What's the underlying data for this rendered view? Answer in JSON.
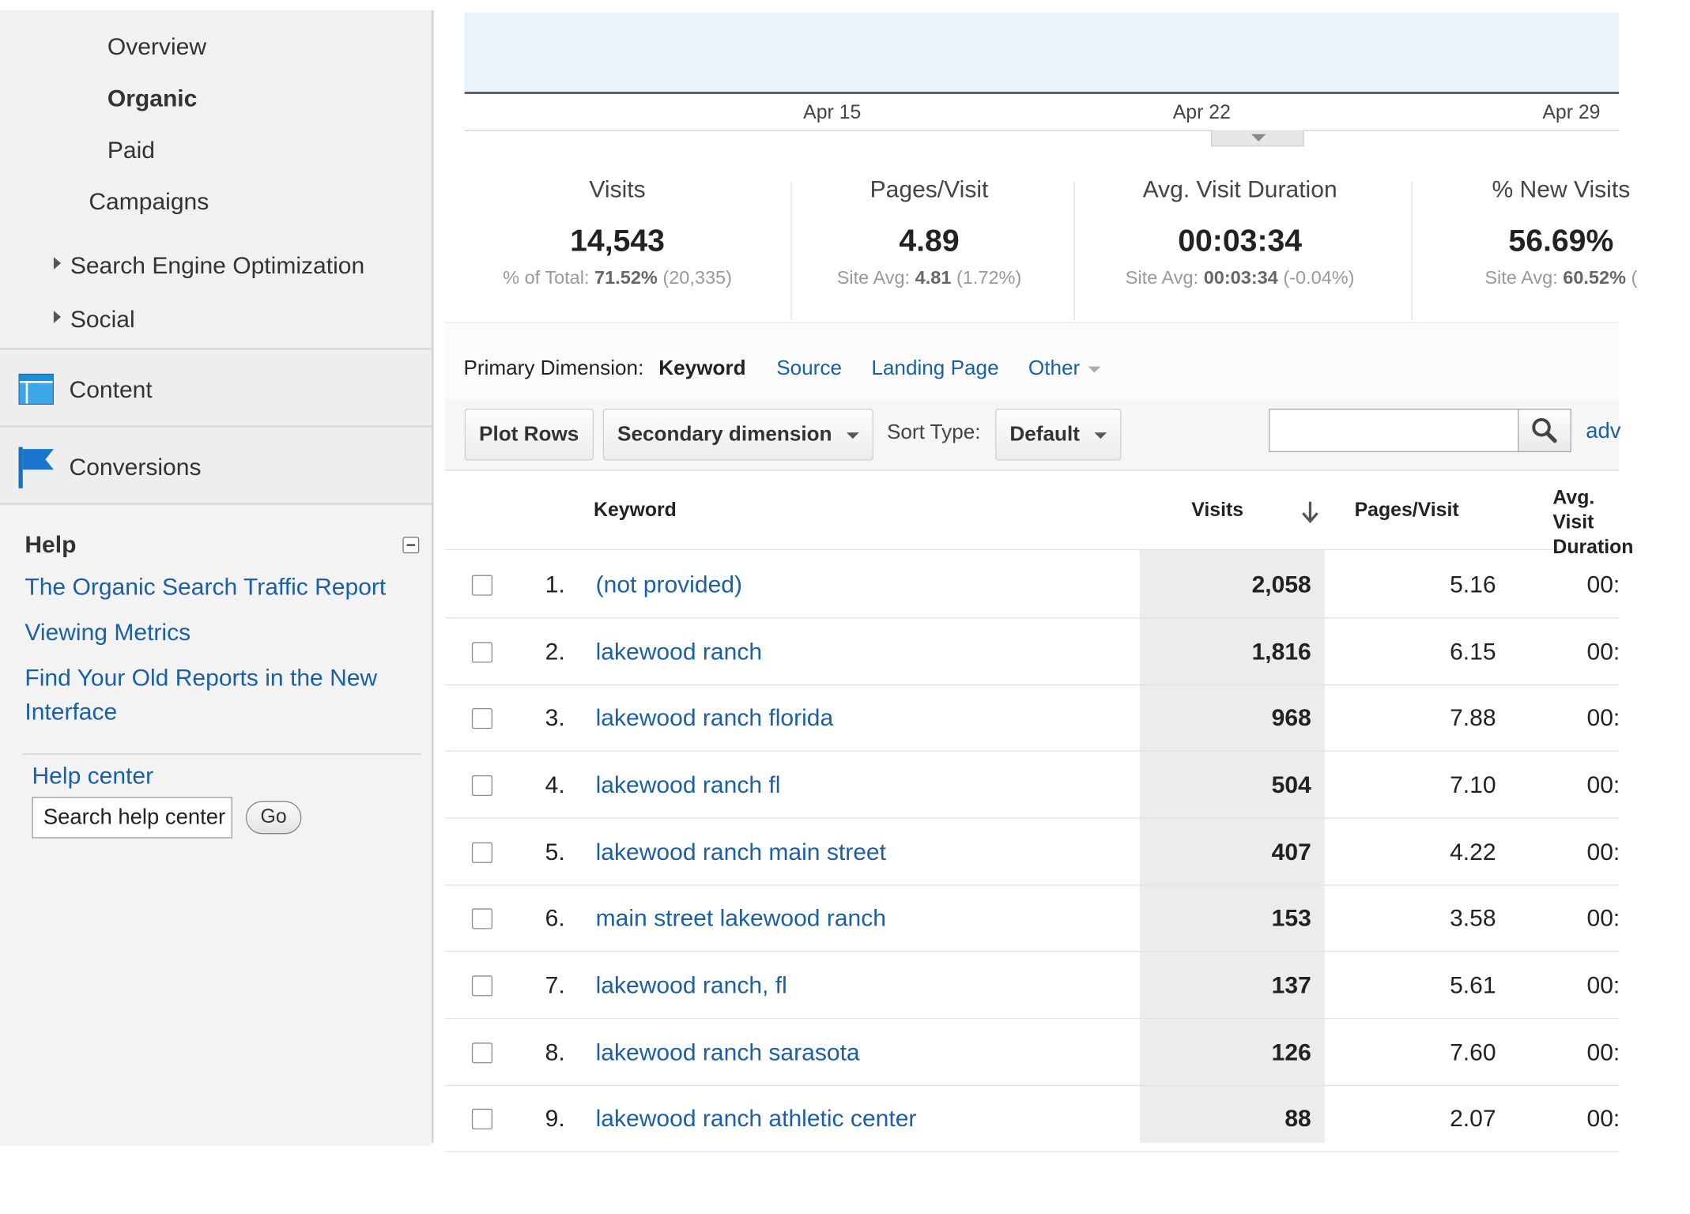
{
  "sidebar": {
    "items": [
      {
        "label": "Overview"
      },
      {
        "label": "Organic"
      },
      {
        "label": "Paid"
      },
      {
        "label": "Campaigns"
      },
      {
        "label": "Search Engine Optimization"
      },
      {
        "label": "Social"
      }
    ],
    "sections": [
      {
        "label": "Content",
        "icon": "content-icon"
      },
      {
        "label": "Conversions",
        "icon": "flag-icon"
      }
    ],
    "help": {
      "title": "Help",
      "links": [
        "The Organic Search Traffic Report",
        "Viewing Metrics",
        "Find Your Old Reports in the New Interface"
      ],
      "help_center": "Help center",
      "search_value": "Search help center",
      "go_label": "Go"
    }
  },
  "chart": {
    "dates": [
      "Apr 15",
      "Apr 22",
      "Apr 29"
    ],
    "band_color": "#e8f3fb"
  },
  "metrics": [
    {
      "label": "Visits",
      "value": "14,543",
      "sub_prefix": "% of Total:",
      "sub_bold": "71.52%",
      "sub_suffix": "(20,335)"
    },
    {
      "label": "Pages/Visit",
      "value": "4.89",
      "sub_prefix": "Site Avg:",
      "sub_bold": "4.81",
      "sub_suffix": "(1.72%)"
    },
    {
      "label": "Avg. Visit Duration",
      "value": "00:03:34",
      "sub_prefix": "Site Avg:",
      "sub_bold": "00:03:34",
      "sub_suffix": "(-0.04%)"
    },
    {
      "label": "% New Visits",
      "value": "56.69%",
      "sub_prefix": "Site Avg:",
      "sub_bold": "60.52%",
      "sub_suffix": "("
    }
  ],
  "dimension": {
    "label": "Primary Dimension:",
    "active": "Keyword",
    "options": [
      "Source",
      "Landing Page",
      "Other"
    ]
  },
  "toolbar": {
    "plot_rows": "Plot Rows",
    "secondary_dimension": "Secondary dimension",
    "sort_type_label": "Sort Type:",
    "sort_type_value": "Default",
    "advanced_link": "adv"
  },
  "table": {
    "columns": [
      "Keyword",
      "Visits",
      "Pages/Visit",
      "Avg. Visit Duration"
    ],
    "rows": [
      {
        "num": "1.",
        "keyword": "(not provided)",
        "visits": "2,058",
        "ppv": "5.16",
        "duration": "00:"
      },
      {
        "num": "2.",
        "keyword": "lakewood ranch",
        "visits": "1,816",
        "ppv": "6.15",
        "duration": "00:"
      },
      {
        "num": "3.",
        "keyword": "lakewood ranch florida",
        "visits": "968",
        "ppv": "7.88",
        "duration": "00:"
      },
      {
        "num": "4.",
        "keyword": "lakewood ranch fl",
        "visits": "504",
        "ppv": "7.10",
        "duration": "00:"
      },
      {
        "num": "5.",
        "keyword": "lakewood ranch main street",
        "visits": "407",
        "ppv": "4.22",
        "duration": "00:"
      },
      {
        "num": "6.",
        "keyword": "main street lakewood ranch",
        "visits": "153",
        "ppv": "3.58",
        "duration": "00:"
      },
      {
        "num": "7.",
        "keyword": "lakewood ranch, fl",
        "visits": "137",
        "ppv": "5.61",
        "duration": "00:"
      },
      {
        "num": "8.",
        "keyword": "lakewood ranch sarasota",
        "visits": "126",
        "ppv": "7.60",
        "duration": "00:"
      },
      {
        "num": "9.",
        "keyword": "lakewood ranch athletic center",
        "visits": "88",
        "ppv": "2.07",
        "duration": "00:"
      }
    ]
  },
  "colors": {
    "link": "#1b5fa6",
    "sidebar_bg": "#f1f1f1",
    "visits_column_bg": "#ececec"
  }
}
